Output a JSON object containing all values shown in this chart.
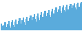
{
  "values": [
    72,
    65,
    58,
    68,
    75,
    62,
    55,
    70,
    78,
    65,
    60,
    74,
    80,
    68,
    62,
    76,
    82,
    70,
    64,
    78,
    85,
    72,
    66,
    80,
    88,
    75,
    68,
    83,
    90,
    78,
    71,
    86,
    93,
    80,
    74,
    89,
    96,
    83,
    77,
    92,
    99,
    87,
    80,
    95,
    102,
    90,
    84,
    98,
    105,
    92,
    87,
    101,
    108,
    95,
    90,
    104,
    111,
    98,
    93,
    107,
    115,
    102,
    96,
    110,
    118,
    105,
    100,
    114,
    120,
    108,
    103,
    117,
    122,
    110,
    105,
    119,
    124,
    112,
    107,
    121,
    126,
    114,
    109,
    123,
    128,
    116,
    111,
    125,
    130,
    118
  ],
  "line_color": "#5aabdc",
  "fill_color": "#5aabdc",
  "background_color": "#ffffff"
}
